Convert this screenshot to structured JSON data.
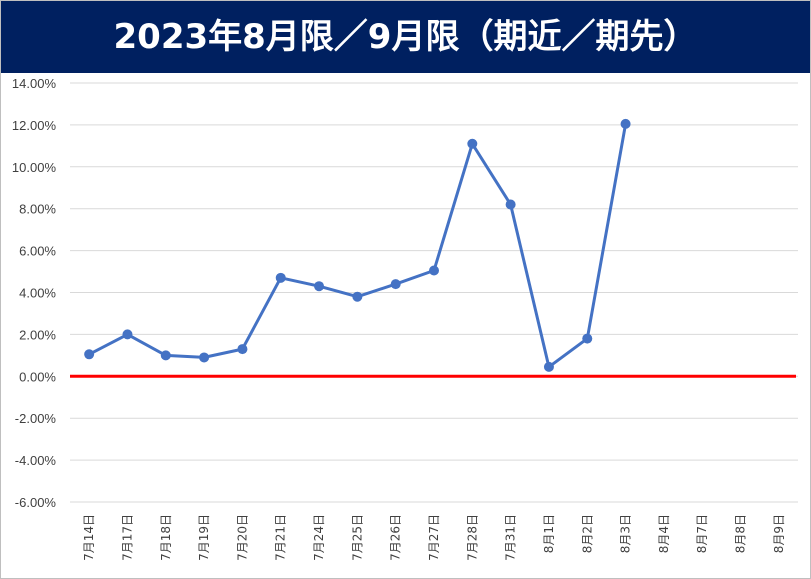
{
  "chart_data": {
    "type": "line",
    "title": "2023年8月限／9月限（期近／期先）",
    "categories": [
      "7月14日",
      "7月17日",
      "7月18日",
      "7月19日",
      "7月20日",
      "7月21日",
      "7月24日",
      "7月25日",
      "7月26日",
      "7月27日",
      "7月28日",
      "7月31日",
      "8月1日",
      "8月2日",
      "8月3日",
      "8月4日",
      "8月7日",
      "8月8日",
      "8月9日"
    ],
    "series": [
      {
        "values": [
          1.05,
          2.0,
          1.0,
          0.9,
          1.3,
          4.7,
          4.3,
          3.8,
          4.4,
          5.05,
          11.1,
          8.2,
          0.45,
          1.8,
          12.05,
          null,
          null,
          null,
          null
        ]
      }
    ],
    "y_ticks": [
      "14.00%",
      "12.00%",
      "10.00%",
      "8.00%",
      "6.00%",
      "4.00%",
      "2.00%",
      "0.00%",
      "-2.00%",
      "-4.00%",
      "-6.00%"
    ],
    "ylim": [
      -6,
      14
    ],
    "y_unit": "%",
    "grid": true,
    "legend": "none",
    "xlabel": "",
    "ylabel": "",
    "colors": {
      "line": "#4472C4",
      "zero_line": "#FF0000",
      "grid": "#D9D9D9",
      "title_bg": "#002060",
      "title_text": "#FFFFFF"
    }
  }
}
